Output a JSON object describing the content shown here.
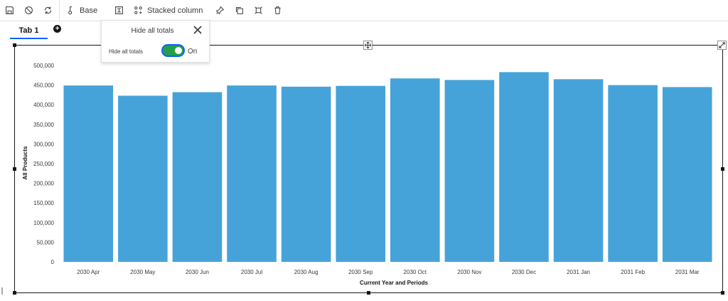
{
  "toolbar": {
    "items": [
      {
        "icon": "save-icon",
        "label": ""
      },
      {
        "icon": "undo-icon",
        "label": ""
      },
      {
        "icon": "refresh-icon",
        "label": ""
      },
      {
        "icon": "base-icon",
        "label": "Base"
      },
      {
        "icon": "visualization-icon",
        "label": ""
      },
      {
        "icon": "chart-type-icon",
        "label": "Stacked column"
      },
      {
        "icon": "pin-icon",
        "label": ""
      },
      {
        "icon": "duplicate-icon",
        "label": ""
      },
      {
        "icon": "focus-icon",
        "label": ""
      },
      {
        "icon": "trash-icon",
        "label": ""
      }
    ]
  },
  "tabs": [
    {
      "label": "Tab 1",
      "active": true
    }
  ],
  "popover": {
    "title": "Hide all totals",
    "option_label": "Hide all totals",
    "toggle_state": "On",
    "toggle_on": true
  },
  "chart_data": {
    "type": "bar",
    "categories": [
      "2030 Apr",
      "2030 May",
      "2030 Jun",
      "2030 Jul",
      "2030 Aug",
      "2030 Sep",
      "2030 Oct",
      "2030 Nov",
      "2030 Dec",
      "2031 Jan",
      "2031 Feb",
      "2031 Mar"
    ],
    "values": [
      449000,
      423000,
      432000,
      449000,
      446000,
      448000,
      467000,
      463000,
      483000,
      465000,
      450000,
      445000
    ],
    "title": "",
    "xlabel": "Current Year and Periods",
    "ylabel": "All Products",
    "ylim": [
      0,
      500000
    ],
    "yticks": [
      "0",
      "50,000",
      "100,000",
      "150,000",
      "200,000",
      "250,000",
      "300,000",
      "350,000",
      "400,000",
      "450,000",
      "500,000"
    ],
    "bar_color": "#45a3d9",
    "grid": false,
    "legend": "none"
  }
}
